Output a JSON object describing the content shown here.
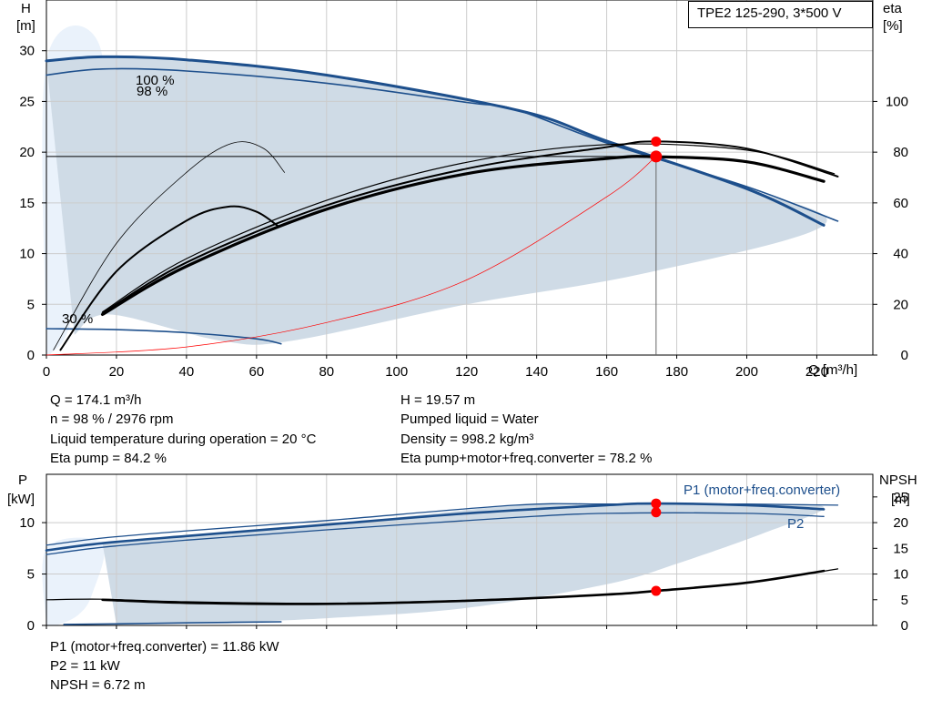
{
  "chart_data": [
    {
      "type": "line",
      "title": "TPE2 125-290, 3*500 V",
      "xlabel": "Q [m³/h]",
      "ylabel_left": [
        "H",
        "[m]"
      ],
      "ylabel_right": [
        "eta",
        "[%]"
      ],
      "xlim": [
        0,
        236
      ],
      "ylim_left": [
        0,
        35
      ],
      "ylim_right": [
        0,
        140
      ],
      "x_ticks": [
        0,
        20,
        40,
        60,
        80,
        100,
        120,
        140,
        160,
        180,
        200,
        220
      ],
      "y_ticks_left": [
        0,
        5,
        10,
        15,
        20,
        25,
        30
      ],
      "y_ticks_right": [
        0,
        20,
        40,
        60,
        80,
        100
      ],
      "grid": true,
      "curve_labels": [
        "100 %",
        "98 %",
        "30 %"
      ],
      "series": [
        {
          "color": "#1d4f8c",
          "width": 3,
          "axis": "H",
          "x": [
            0,
            16,
            40,
            80,
            135,
            160,
            200,
            222
          ],
          "y": [
            29,
            29.4,
            29.1,
            27.6,
            24.1,
            21.1,
            16.4,
            12.8
          ]
        },
        {
          "color": "#1d4f8c",
          "width": 1.6,
          "axis": "H",
          "x": [
            0,
            16,
            40,
            80,
            120,
            134,
            160,
            200,
            226
          ],
          "y": [
            27.6,
            28.2,
            28.0,
            26.8,
            24.9,
            24.2,
            20.9,
            16.6,
            13.2
          ]
        },
        {
          "color": "#1d4f8c",
          "width": 1.6,
          "axis": "H",
          "x": [
            0,
            20,
            40,
            60,
            67
          ],
          "y": [
            2.6,
            2.5,
            2.2,
            1.6,
            1.1
          ]
        },
        {
          "color": "#000000",
          "width": 3.2,
          "axis": "eta",
          "x": [
            16,
            40,
            80,
            120,
            160,
            174.1,
            200,
            222
          ],
          "y": [
            16,
            35,
            57.5,
            71.5,
            77.5,
            78.2,
            76.2,
            68.5
          ]
        },
        {
          "color": "#000000",
          "width": 2,
          "axis": "eta",
          "x": [
            16,
            40,
            80,
            120,
            160,
            174.1,
            200,
            226
          ],
          "y": [
            16.5,
            36.5,
            59,
            73.5,
            82,
            84.2,
            81.4,
            70.4
          ]
        },
        {
          "color": "#000000",
          "width": 1.2,
          "axis": "eta",
          "x": [
            16,
            40,
            80,
            120,
            160,
            200,
            225
          ],
          "y": [
            17,
            38,
            61,
            76,
            83,
            80.8,
            71.5
          ]
        },
        {
          "color": "#000000",
          "width": 2,
          "axis": "eta",
          "x": [
            4,
            20,
            40,
            52,
            60,
            66
          ],
          "y": [
            2,
            33,
            53,
            58.5,
            56.5,
            51
          ]
        },
        {
          "color": "#000000",
          "width": 0.8,
          "axis": "eta",
          "x": [
            2,
            20,
            40,
            53,
            62,
            68
          ],
          "y": [
            2,
            44,
            72,
            83.5,
            81.5,
            72
          ]
        },
        {
          "color": "#ff0000",
          "width": 0.7,
          "axis": "H",
          "x": [
            0,
            40,
            80,
            120,
            160,
            174.1
          ],
          "y": [
            0,
            0.8,
            3.2,
            7.4,
            15.6,
            19.57
          ]
        }
      ],
      "duty_point": {
        "x": 174.1,
        "y": 19.57,
        "eta_pump": 84.2
      }
    },
    {
      "type": "line",
      "xlabel": "",
      "ylabel_left": [
        "P",
        "[kW]"
      ],
      "ylabel_right": [
        "NPSH",
        "[m]"
      ],
      "xlim": [
        0,
        236
      ],
      "ylim_left": [
        0,
        14.7
      ],
      "ylim_right": [
        0,
        29.4
      ],
      "x_ticks": [
        0,
        20,
        40,
        60,
        80,
        100,
        120,
        140,
        160,
        180,
        200,
        220
      ],
      "y_ticks_left": [
        0,
        5,
        10
      ],
      "y_ticks_right": [
        0,
        5,
        10,
        15,
        20,
        25
      ],
      "grid": true,
      "series_labels": [
        "P1 (motor+freq.converter)",
        "P2"
      ],
      "series": [
        {
          "color": "#1d4f8c",
          "width": 2.6,
          "axis": "P",
          "x": [
            0,
            16,
            40,
            80,
            120,
            160,
            174.1,
            200,
            222
          ],
          "y": [
            7.3,
            8.0,
            8.7,
            9.8,
            10.9,
            11.7,
            11.86,
            11.7,
            11.3
          ]
        },
        {
          "color": "#1d4f8c",
          "width": 1.3,
          "axis": "P",
          "x": [
            0,
            16,
            40,
            80,
            134,
            160,
            200,
            226
          ],
          "y": [
            7.8,
            8.5,
            9.2,
            10.2,
            11.7,
            11.8,
            11.8,
            11.7
          ]
        },
        {
          "color": "#1d4f8c",
          "width": 1.3,
          "axis": "P",
          "x": [
            0,
            16,
            40,
            80,
            134,
            160,
            200,
            222
          ],
          "y": [
            6.9,
            7.6,
            8.3,
            9.3,
            10.5,
            10.9,
            10.9,
            10.6
          ]
        },
        {
          "color": "#1d4f8c",
          "width": 1.6,
          "axis": "P",
          "x": [
            5,
            20,
            40,
            67
          ],
          "y": [
            0.1,
            0.15,
            0.25,
            0.35
          ]
        },
        {
          "color": "#000000",
          "width": 2.6,
          "axis": "NPSH",
          "x": [
            16,
            40,
            80,
            120,
            160,
            174.1,
            200,
            222
          ],
          "y": [
            5,
            4.4,
            4.2,
            4.8,
            6.0,
            6.72,
            8.3,
            10.6
          ]
        },
        {
          "color": "#000000",
          "width": 1.2,
          "axis": "NPSH",
          "x": [
            0,
            16,
            40,
            80,
            120,
            160,
            200,
            226
          ],
          "y": [
            5,
            5.1,
            4.6,
            4.3,
            4.9,
            6.0,
            8.3,
            11.0
          ]
        }
      ],
      "duty_points": [
        {
          "x": 174.1,
          "y": 11.86,
          "label": "P1"
        },
        {
          "x": 174.1,
          "y": 11,
          "label": "P2"
        },
        {
          "x": 174.1,
          "y": 6.72,
          "axis": "NPSH"
        }
      ]
    }
  ],
  "readouts_top": [
    "Q = 174.1 m³/h",
    "n = 98 % / 2976 rpm",
    "Liquid temperature during operation = 20 °C",
    "Eta pump = 84.2 %",
    "H = 19.57 m",
    "Pumped liquid = Water",
    "Density = 998.2 kg/m³",
    "Eta pump+motor+freq.converter = 78.2 %"
  ],
  "readouts_bottom": [
    "P1 (motor+freq.converter) = 11.86 kW",
    "P2 = 11 kW",
    "NPSH = 6.72 m"
  ],
  "colors": {
    "envelope": "#cfdbe6",
    "curve_blue": "#1d4f8c",
    "duty_point": "#ff0000",
    "grid": "#cccccc"
  }
}
